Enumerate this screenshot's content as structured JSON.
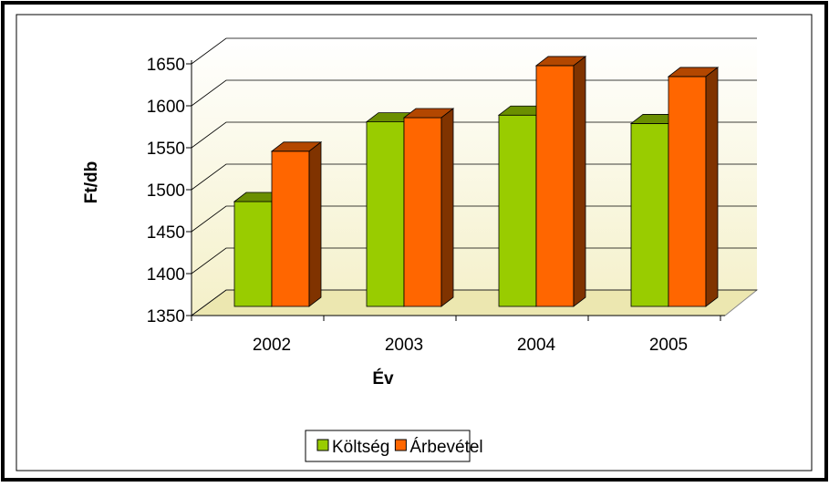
{
  "chart_data": {
    "type": "bar3d",
    "x_label": "Év",
    "y_label": "Ft/db",
    "categories": [
      "2002",
      "2003",
      "2004",
      "2005"
    ],
    "series": [
      {
        "name": "Költség",
        "color": "#99cc00",
        "values": [
          1475,
          1570,
          1578,
          1568
        ]
      },
      {
        "name": "Árbevétel",
        "color": "#ff6600",
        "values": [
          1535,
          1575,
          1637,
          1624
        ]
      }
    ],
    "ylim": [
      1350,
      1650
    ],
    "yticks": [
      1350,
      1400,
      1450,
      1500,
      1550,
      1600,
      1650
    ],
    "grid": true,
    "legend": "bottom"
  }
}
